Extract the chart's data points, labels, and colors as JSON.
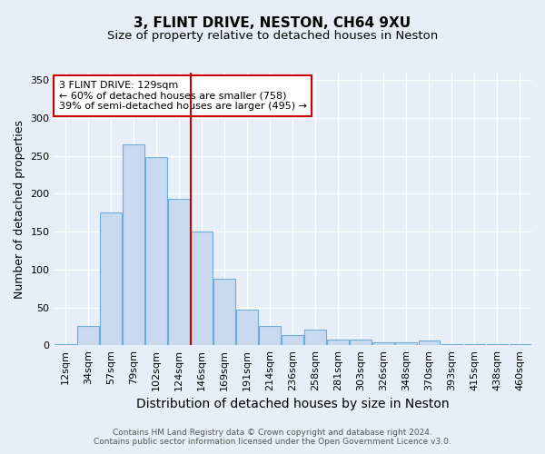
{
  "title_line1": "3, FLINT DRIVE, NESTON, CH64 9XU",
  "title_line2": "Size of property relative to detached houses in Neston",
  "xlabel": "Distribution of detached houses by size in Neston",
  "ylabel": "Number of detached properties",
  "bar_labels": [
    "12sqm",
    "34sqm",
    "57sqm",
    "79sqm",
    "102sqm",
    "124sqm",
    "146sqm",
    "169sqm",
    "191sqm",
    "214sqm",
    "236sqm",
    "258sqm",
    "281sqm",
    "303sqm",
    "326sqm",
    "348sqm",
    "370sqm",
    "393sqm",
    "415sqm",
    "438sqm",
    "460sqm"
  ],
  "bar_values": [
    2,
    25,
    175,
    265,
    248,
    193,
    150,
    88,
    47,
    25,
    14,
    21,
    7,
    8,
    4,
    4,
    6,
    1,
    2,
    1,
    2
  ],
  "bar_color": "#c8d9f0",
  "bar_edge_color": "#6baed6",
  "vline_x": 5.5,
  "vline_color": "#cc0000",
  "annotation_text": "3 FLINT DRIVE: 129sqm\n← 60% of detached houses are smaller (758)\n39% of semi-detached houses are larger (495) →",
  "annotation_box_color": "white",
  "annotation_box_edge_color": "#cc0000",
  "ylim": [
    0,
    360
  ],
  "yticks": [
    0,
    50,
    100,
    150,
    200,
    250,
    300,
    350
  ],
  "footnote_line1": "Contains HM Land Registry data © Crown copyright and database right 2024.",
  "footnote_line2": "Contains public sector information licensed under the Open Government Licence v3.0.",
  "background_color": "#e8eef8",
  "plot_bg_color": "#e8eef8",
  "grid_color": "white",
  "title_fontsize": 11,
  "subtitle_fontsize": 9.5,
  "label_fontsize": 9,
  "tick_fontsize": 8,
  "annotation_fontsize": 8,
  "footnote_fontsize": 6.5
}
